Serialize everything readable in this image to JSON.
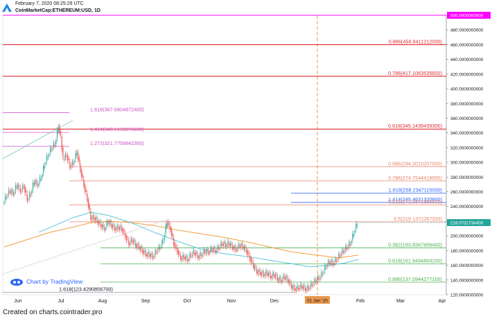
{
  "header": {
    "timestamp": "February 7, 2020 08:25:29 UTC",
    "symbol": "CoinMarketCap:ETHEREUM:USD, 1D"
  },
  "watermark": "Chart by TradingView",
  "footer": "Created on charts.cointrader.pro",
  "colors": {
    "red_level": "#e0282e",
    "salmon_level": "#e8826b",
    "green_level": "#4caf50",
    "blue_level": "#2962ff",
    "purple_level": "#c850c8",
    "magenta_level": "#ff00ff",
    "price_tag": "#26a69a",
    "up_candle": "#26a69a",
    "down_candle": "#ef5350",
    "ma_orange": "#f0a040",
    "ma_teal": "#5cc6d8",
    "vline": "#e8964a"
  },
  "chart_data": {
    "type": "candlestick",
    "ylim": [
      120,
      500
    ],
    "y_ticks": [
      "120.0000000000",
      "140.0000000000",
      "160.0000000000",
      "180.0000000000",
      "200.0000000000",
      "220.0000000000",
      "240.0000000000",
      "260.0000000000",
      "280.0000000000",
      "300.0000000000",
      "320.0000000000",
      "340.0000000000",
      "360.0000000000",
      "380.0000000000",
      "400.0000000000",
      "420.0000000000",
      "440.0000000000",
      "460.0000000000",
      "480.0000000000"
    ],
    "x_ticks": [
      "Jun",
      "Jul",
      "Aug",
      "Sep",
      "Oct",
      "Nov",
      "Dec",
      "01 Jan '20",
      "Feb",
      "Mar",
      "Apr"
    ],
    "current_price": "218.0731734400",
    "top_level_label": "500.0000000000",
    "levels": [
      {
        "label": "0.886(459.9411212000)",
        "value": 459.9411212,
        "kind": "red"
      },
      {
        "label": "0.786(417.1063535600)",
        "value": 417.10635356,
        "kind": "red"
      },
      {
        "label": "0.618(345.1439439300)",
        "value": 345.14394393,
        "kind": "red"
      },
      {
        "label": "0.886(294.2010207500)",
        "value": 294.20102075,
        "kind": "salmon"
      },
      {
        "label": "0.786(274.7544419900)",
        "value": 274.75444199,
        "kind": "salmon"
      },
      {
        "label": "1.618(258.2347115000)",
        "value": 258.2347115,
        "kind": "blue"
      },
      {
        "label": "1.414(245.4631320600)",
        "value": 245.46313206,
        "kind": "blue"
      },
      {
        "label": "0.618(242.0841896600)",
        "value": 242.08418966,
        "kind": "salmon"
      },
      {
        "label": "0.5(219.1372267200)",
        "value": 219.13722672,
        "kind": "salmon"
      },
      {
        "label": "0.382(183.8367656400)",
        "value": 183.83676564,
        "kind": "green"
      },
      {
        "label": "0.618(161.9494804200)",
        "value": 161.94948042,
        "kind": "green"
      },
      {
        "label": "0.886(137.0944277100)",
        "value": 137.09442771,
        "kind": "green"
      },
      {
        "label": "1.618(367.6804872400)",
        "value": 367.68048724,
        "kind": "purple"
      },
      {
        "label": "1.414(340.6152276600)",
        "value": 340.61522766,
        "kind": "purple"
      },
      {
        "label": "1.272(321.7756842300)",
        "value": 321.77568423,
        "kind": "purple"
      },
      {
        "label": "1.618(123.4290856700)",
        "value": 123.42908567,
        "kind": "gray"
      }
    ],
    "price_path": [
      [
        0,
        245
      ],
      [
        3,
        255
      ],
      [
        6,
        262
      ],
      [
        9,
        258
      ],
      [
        12,
        270
      ],
      [
        15,
        262
      ],
      [
        18,
        268
      ],
      [
        21,
        250
      ],
      [
        24,
        258
      ],
      [
        27,
        275
      ],
      [
        30,
        270
      ],
      [
        33,
        280
      ],
      [
        36,
        298
      ],
      [
        39,
        310
      ],
      [
        42,
        320
      ],
      [
        45,
        325
      ],
      [
        48,
        350
      ],
      [
        50,
        335
      ],
      [
        52,
        305
      ],
      [
        55,
        310
      ],
      [
        58,
        295
      ],
      [
        61,
        300
      ],
      [
        64,
        315
      ],
      [
        67,
        290
      ],
      [
        70,
        270
      ],
      [
        73,
        250
      ],
      [
        76,
        225
      ],
      [
        79,
        225
      ],
      [
        82,
        220
      ],
      [
        85,
        215
      ],
      [
        88,
        210
      ],
      [
        91,
        220
      ],
      [
        94,
        215
      ],
      [
        97,
        210
      ],
      [
        100,
        212
      ],
      [
        103,
        210
      ],
      [
        106,
        200
      ],
      [
        109,
        190
      ],
      [
        112,
        195
      ],
      [
        115,
        188
      ],
      [
        118,
        185
      ],
      [
        121,
        180
      ],
      [
        124,
        175
      ],
      [
        127,
        175
      ],
      [
        130,
        172
      ],
      [
        133,
        180
      ],
      [
        136,
        185
      ],
      [
        139,
        195
      ],
      [
        142,
        220
      ],
      [
        145,
        210
      ],
      [
        148,
        190
      ],
      [
        151,
        180
      ],
      [
        154,
        170
      ],
      [
        157,
        172
      ],
      [
        160,
        168
      ],
      [
        163,
        175
      ],
      [
        166,
        178
      ],
      [
        169,
        172
      ],
      [
        172,
        175
      ],
      [
        175,
        180
      ],
      [
        178,
        178
      ],
      [
        181,
        183
      ],
      [
        184,
        180
      ],
      [
        187,
        185
      ],
      [
        190,
        190
      ],
      [
        193,
        188
      ],
      [
        196,
        190
      ],
      [
        199,
        185
      ],
      [
        202,
        182
      ],
      [
        205,
        188
      ],
      [
        208,
        186
      ],
      [
        211,
        180
      ],
      [
        214,
        170
      ],
      [
        217,
        160
      ],
      [
        220,
        152
      ],
      [
        223,
        150
      ],
      [
        226,
        148
      ],
      [
        229,
        150
      ],
      [
        232,
        145
      ],
      [
        235,
        148
      ],
      [
        238,
        142
      ],
      [
        241,
        140
      ],
      [
        244,
        145
      ],
      [
        247,
        140
      ],
      [
        250,
        132
      ],
      [
        253,
        128
      ],
      [
        256,
        130
      ],
      [
        259,
        132
      ],
      [
        262,
        128
      ],
      [
        265,
        130
      ],
      [
        268,
        135
      ],
      [
        271,
        140
      ],
      [
        274,
        143
      ],
      [
        277,
        150
      ],
      [
        280,
        160
      ],
      [
        283,
        165
      ],
      [
        286,
        163
      ],
      [
        289,
        168
      ],
      [
        292,
        175
      ],
      [
        295,
        180
      ],
      [
        298,
        185
      ],
      [
        301,
        190
      ],
      [
        304,
        205
      ],
      [
        307,
        218
      ]
    ],
    "ma_orange": [
      [
        0,
        185
      ],
      [
        20,
        195
      ],
      [
        40,
        205
      ],
      [
        60,
        212
      ],
      [
        75,
        218
      ],
      [
        90,
        220
      ],
      [
        110,
        218
      ],
      [
        130,
        214
      ],
      [
        150,
        208
      ],
      [
        170,
        203
      ],
      [
        190,
        198
      ],
      [
        210,
        192
      ],
      [
        230,
        185
      ],
      [
        250,
        178
      ],
      [
        270,
        174
      ],
      [
        290,
        170
      ],
      [
        307,
        174
      ]
    ],
    "ma_teal": [
      [
        30,
        205
      ],
      [
        45,
        215
      ],
      [
        60,
        225
      ],
      [
        75,
        232
      ],
      [
        90,
        228
      ],
      [
        110,
        218
      ],
      [
        130,
        205
      ],
      [
        150,
        193
      ],
      [
        170,
        182
      ],
      [
        190,
        176
      ],
      [
        210,
        172
      ],
      [
        230,
        167
      ],
      [
        250,
        162
      ],
      [
        265,
        158
      ],
      [
        280,
        160
      ],
      [
        295,
        163
      ],
      [
        307,
        168
      ]
    ]
  }
}
